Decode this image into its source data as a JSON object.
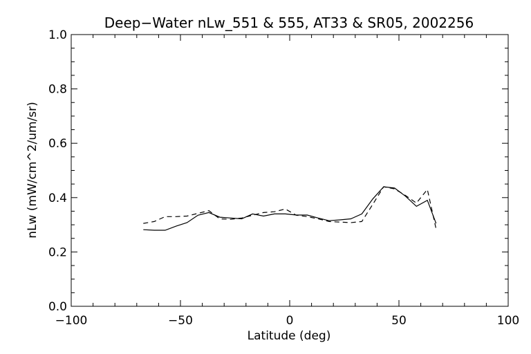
{
  "chart_data": {
    "type": "line",
    "title": "Deep−Water nLw_551 & 555, AT33 & SR05, 2002256",
    "xlabel": "Latitude (deg)",
    "ylabel": "nLw (mW/cm^2/um/sr)",
    "xlim": [
      -100,
      100
    ],
    "ylim": [
      0.0,
      1.0
    ],
    "xticks": [
      -100,
      -50,
      0,
      50,
      100
    ],
    "xtick_labels": [
      "−100",
      "−50",
      "0",
      "50",
      "100"
    ],
    "yticks": [
      0.0,
      0.2,
      0.4,
      0.6,
      0.8,
      1.0
    ],
    "ytick_labels": [
      "0.0",
      "0.2",
      "0.4",
      "0.6",
      "0.8",
      "1.0"
    ],
    "grid": false,
    "series": [
      {
        "style": "solid",
        "x": [
          -67,
          -62,
          -57,
          -52,
          -47,
          -42,
          -37,
          -32,
          -27,
          -22,
          -17,
          -12,
          -7,
          -2,
          3,
          8,
          13,
          18,
          23,
          28,
          33,
          38,
          43,
          48,
          53,
          58,
          63,
          67
        ],
        "y": [
          0.282,
          0.28,
          0.28,
          0.295,
          0.308,
          0.335,
          0.345,
          0.328,
          0.325,
          0.322,
          0.34,
          0.332,
          0.34,
          0.34,
          0.336,
          0.336,
          0.325,
          0.315,
          0.318,
          0.322,
          0.34,
          0.395,
          0.44,
          0.435,
          0.405,
          0.368,
          0.39,
          0.305
        ]
      },
      {
        "style": "dashed",
        "x": [
          -67,
          -62,
          -57,
          -52,
          -47,
          -42,
          -37,
          -32,
          -27,
          -22,
          -17,
          -12,
          -7,
          -2,
          3,
          8,
          13,
          18,
          23,
          28,
          33,
          38,
          43,
          48,
          53,
          58,
          63,
          67
        ],
        "y": [
          0.305,
          0.312,
          0.33,
          0.33,
          0.332,
          0.342,
          0.352,
          0.322,
          0.32,
          0.325,
          0.335,
          0.345,
          0.348,
          0.358,
          0.335,
          0.33,
          0.322,
          0.312,
          0.31,
          0.308,
          0.312,
          0.375,
          0.44,
          0.432,
          0.408,
          0.38,
          0.43,
          0.285
        ]
      }
    ]
  }
}
